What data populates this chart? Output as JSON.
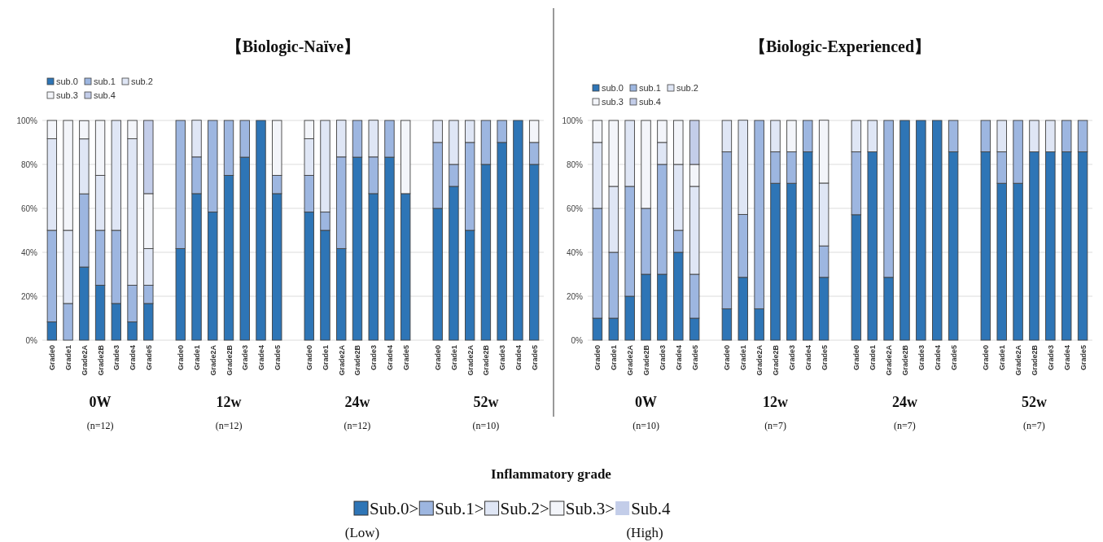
{
  "chart_data": [
    {
      "type": "bar",
      "stacked": true,
      "title": "【Biologic-Naïve】",
      "categories": [
        "Grade0",
        "Grade1",
        "Grade2A",
        "Grade2B",
        "Grade3",
        "Grade4",
        "Grade5",
        null,
        "Grade0",
        "Grade1",
        "Grade2A",
        "Grade2B",
        "Grade3",
        "Grade4",
        "Grade5",
        null,
        "Grade0",
        "Grade1",
        "Grade2A",
        "Grade2B",
        "Grade3",
        "Grade4",
        "Grade5",
        null,
        "Grade0",
        "Grade1",
        "Grade2A",
        "Grade2B",
        "Grade3",
        "Grade4",
        "Grade5"
      ],
      "series": [
        {
          "name": "sub.0",
          "color": "#2e75b6",
          "values": [
            8.3,
            0,
            33.3,
            25,
            16.7,
            8.3,
            16.7,
            null,
            41.7,
            66.7,
            58.3,
            75,
            83.3,
            100,
            66.7,
            null,
            58.3,
            50,
            41.7,
            83.3,
            66.7,
            83.3,
            66.7,
            null,
            60,
            70,
            50,
            80,
            90,
            100,
            80
          ]
        },
        {
          "name": "sub.1",
          "color": "#9db6e0",
          "values": [
            41.7,
            16.7,
            33.3,
            25,
            33.3,
            16.7,
            8.3,
            null,
            58.3,
            16.7,
            41.7,
            25,
            16.7,
            0,
            8.3,
            null,
            16.7,
            8.3,
            41.7,
            16.7,
            16.7,
            16.7,
            0,
            null,
            30,
            10,
            40,
            20,
            10,
            0,
            10
          ]
        },
        {
          "name": "sub.2",
          "color": "#dfe6f5",
          "values": [
            41.7,
            33.3,
            25,
            25,
            50,
            66.7,
            16.7,
            null,
            0,
            16.7,
            0,
            0,
            0,
            0,
            0,
            null,
            16.7,
            41.7,
            16.7,
            0,
            16.7,
            0,
            0,
            null,
            10,
            20,
            10,
            0,
            0,
            0,
            0
          ]
        },
        {
          "name": "sub.3",
          "color": "#f3f5fa",
          "values": [
            8.3,
            50,
            8.3,
            25,
            0,
            8.3,
            25,
            null,
            0,
            0,
            0,
            0,
            0,
            0,
            25,
            null,
            8.3,
            0,
            0,
            0,
            0,
            0,
            33.3,
            null,
            0,
            0,
            0,
            0,
            0,
            0,
            10
          ]
        },
        {
          "name": "sub.4",
          "color": "#c3cde9",
          "values": [
            0,
            0,
            0,
            0,
            0,
            0,
            33.3,
            null,
            0,
            0,
            0,
            0,
            0,
            0,
            0,
            null,
            0,
            0,
            0,
            0,
            0,
            0,
            0,
            null,
            0,
            0,
            0,
            0,
            0,
            0,
            0
          ]
        }
      ],
      "ylim": [
        0,
        100
      ],
      "yticks": [
        {
          "value": 0,
          "label": "0%"
        },
        {
          "value": 20,
          "label": "20%"
        },
        {
          "value": 40,
          "label": "40%"
        },
        {
          "value": 60,
          "label": "60%"
        },
        {
          "value": 80,
          "label": "80%"
        },
        {
          "value": 100,
          "label": "100%"
        }
      ],
      "grid": "y",
      "legend": "top left",
      "annotations": [
        "0W",
        "(n=12)",
        "12w",
        "(n=12)",
        "24w",
        "(n=12)",
        "52w",
        "(n=10)",
        "Inflammatory grade",
        "Sub.0>",
        "Sub.1>",
        "Sub.2>",
        "Sub.3>",
        "Sub.4",
        "(Low)",
        "(High)"
      ]
    },
    {
      "type": "bar",
      "stacked": true,
      "title": "【Biologic-Experienced】",
      "categories": [
        "Grade0",
        "Grade1",
        "Grade2A",
        "Grade2B",
        "Grade3",
        "Grade4",
        "Grade5",
        null,
        "Grade0",
        "Grade1",
        "Grade2A",
        "Grade2B",
        "Grade3",
        "Grade4",
        "Grade5",
        null,
        "Grade0",
        "Grade1",
        "Grade2A",
        "Grade2B",
        "Grade3",
        "Grade4",
        "Grade5",
        null,
        "Grade0",
        "Grade1",
        "Grade2A",
        "Grade2B",
        "Grade3",
        "Grade4",
        "Grade5"
      ],
      "series": [
        {
          "name": "sub.0",
          "color": "#2e75b6",
          "values": [
            10,
            10,
            20,
            30,
            30,
            40,
            10,
            null,
            14.3,
            28.6,
            14.3,
            71.4,
            71.4,
            85.7,
            28.6,
            null,
            57.1,
            85.7,
            28.6,
            100,
            100,
            100,
            85.7,
            null,
            85.7,
            71.4,
            71.4,
            85.7,
            85.7,
            85.7,
            85.7
          ]
        },
        {
          "name": "sub.1",
          "color": "#9db6e0",
          "values": [
            50,
            30,
            50,
            30,
            50,
            10,
            20,
            null,
            71.4,
            28.6,
            85.7,
            14.3,
            14.3,
            14.3,
            14.3,
            null,
            28.6,
            0,
            71.4,
            0,
            0,
            0,
            14.3,
            null,
            14.3,
            14.3,
            28.6,
            0,
            0,
            14.3,
            14.3
          ]
        },
        {
          "name": "sub.2",
          "color": "#dfe6f5",
          "values": [
            30,
            30,
            30,
            0,
            10,
            30,
            40,
            null,
            14.3,
            42.9,
            0,
            14.3,
            0,
            0,
            28.6,
            null,
            14.3,
            14.3,
            0,
            0,
            0,
            0,
            0,
            null,
            0,
            14.3,
            0,
            14.3,
            14.3,
            0,
            0
          ]
        },
        {
          "name": "sub.3",
          "color": "#f3f5fa",
          "values": [
            10,
            30,
            0,
            40,
            10,
            20,
            10,
            null,
            0,
            0,
            0,
            0,
            14.3,
            0,
            28.6,
            null,
            0,
            0,
            0,
            0,
            0,
            0,
            0,
            null,
            0,
            0,
            0,
            0,
            0,
            0,
            0
          ]
        },
        {
          "name": "sub.4",
          "color": "#c3cde9",
          "values": [
            0,
            0,
            0,
            0,
            0,
            0,
            20,
            null,
            0,
            0,
            0,
            0,
            0,
            0,
            0,
            null,
            0,
            0,
            0,
            0,
            0,
            0,
            0,
            null,
            0,
            0,
            0,
            0,
            0,
            0,
            0
          ]
        }
      ],
      "ylim": [
        0,
        100
      ],
      "yticks": [
        {
          "value": 0,
          "label": "0%"
        },
        {
          "value": 20,
          "label": "20%"
        },
        {
          "value": 40,
          "label": "40%"
        },
        {
          "value": 60,
          "label": "60%"
        },
        {
          "value": 80,
          "label": "80%"
        },
        {
          "value": 100,
          "label": "100%"
        }
      ],
      "grid": "y",
      "legend": "top left",
      "annotations": [
        "0W",
        "(n=10)",
        "12w",
        "(n=7)",
        "24w",
        "(n=7)",
        "52w",
        "(n=7)"
      ]
    }
  ]
}
